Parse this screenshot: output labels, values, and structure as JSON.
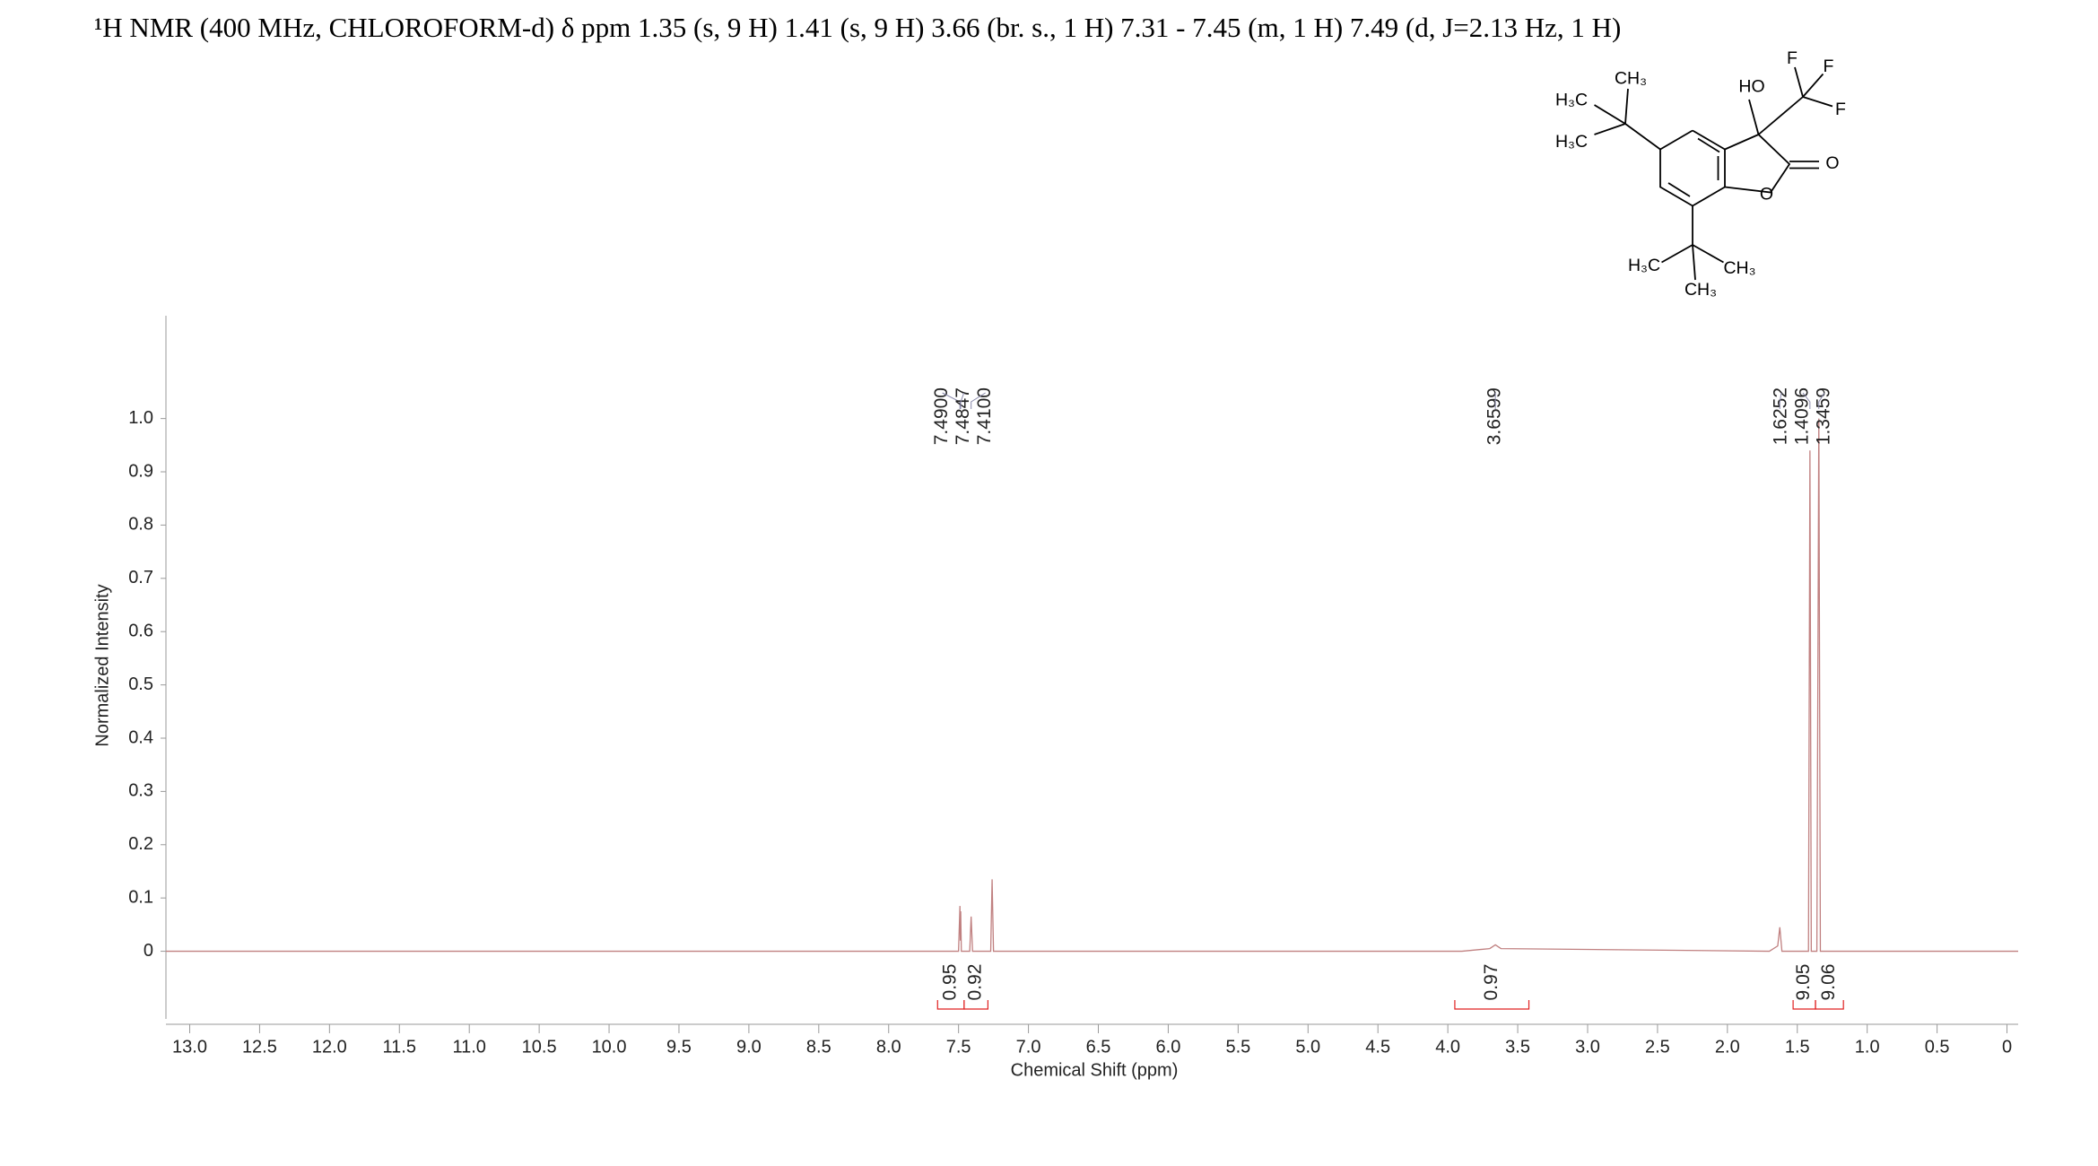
{
  "chart_data": {
    "type": "line",
    "title": "¹H NMR (400 MHz, CHLOROFORM-d) δ ppm 1.35 (s, 9 H) 1.41 (s, 9 H) 3.66 (br. s., 1 H) 7.31 - 7.45 (m, 1 H) 7.49 (d,  J=2.13 Hz, 1 H)",
    "x_label": "Chemical Shift (ppm)",
    "y_label": "Normalized Intensity",
    "x": [
      13.17,
      7.6,
      7.5,
      7.49,
      7.487,
      7.4847,
      7.48,
      7.42,
      7.41,
      7.4,
      7.27,
      7.26,
      7.25,
      3.9,
      3.7,
      3.66,
      3.62,
      1.7,
      1.64,
      1.6252,
      1.61,
      1.42,
      1.4096,
      1.4,
      1.36,
      1.3459,
      1.335,
      1.2,
      -0.08
    ],
    "values": [
      0,
      0,
      0,
      0.085,
      0.02,
      0.075,
      0,
      0,
      0.065,
      0,
      0,
      0.135,
      0,
      0,
      0.005,
      0.012,
      0.005,
      0,
      0.01,
      0.045,
      0,
      0,
      0.94,
      0,
      0,
      1.0,
      0,
      0,
      0
    ],
    "color": "#c08080",
    "xlim": [
      13.17,
      -0.08
    ],
    "ylim": [
      -0.127,
      1.193
    ],
    "xticks": [
      {
        "value": 13,
        "label": "13.0"
      },
      12.5,
      {
        "value": 12,
        "label": "12.0"
      },
      11.5,
      {
        "value": 11,
        "label": "11.0"
      },
      10.5,
      {
        "value": 10,
        "label": "10.0"
      },
      9.5,
      {
        "value": 9,
        "label": "9.0"
      },
      8.5,
      {
        "value": 8,
        "label": "8.0"
      },
      7.5,
      {
        "value": 7,
        "label": "7.0"
      },
      6.5,
      {
        "value": 6,
        "label": "6.0"
      },
      5.5,
      {
        "value": 5,
        "label": "5.0"
      },
      4.5,
      {
        "value": 4,
        "label": "4.0"
      },
      3.5,
      {
        "value": 3,
        "label": "3.0"
      },
      2.5,
      {
        "value": 2,
        "label": "2.0"
      },
      1.5,
      {
        "value": 1,
        "label": "1.0"
      },
      0.5,
      0
    ],
    "yticks": [
      0,
      0.1,
      0.2,
      0.3,
      0.4,
      0.5,
      0.6,
      0.7,
      0.8,
      0.9,
      {
        "value": 1,
        "label": "1.0"
      }
    ],
    "peaks": {
      "values": [
        7.49,
        7.4847,
        7.41,
        3.6599,
        1.6252,
        1.4096,
        1.3459
      ],
      "value_labels": [
        "7.4900",
        "7.4847",
        "7.4100",
        "3.6599",
        "1.6252",
        "1.4096",
        "1.3459"
      ],
      "color": "#1a1a80"
    },
    "integrals": {
      "ranges": [
        [
          7.65,
          7.46
        ],
        [
          7.46,
          7.29
        ],
        [
          3.95,
          3.42
        ],
        [
          1.53,
          1.37
        ],
        [
          1.37,
          1.17
        ]
      ],
      "values": [
        0.95,
        0.92,
        0.97,
        9.05,
        9.06
      ],
      "color": "#e02020"
    },
    "structure_labels": [
      "CH₃",
      "H₃C",
      "H₃C",
      "HO",
      "F",
      "F",
      "F",
      "O",
      "O",
      "H₃C",
      "CH₃",
      "CH₃"
    ]
  }
}
